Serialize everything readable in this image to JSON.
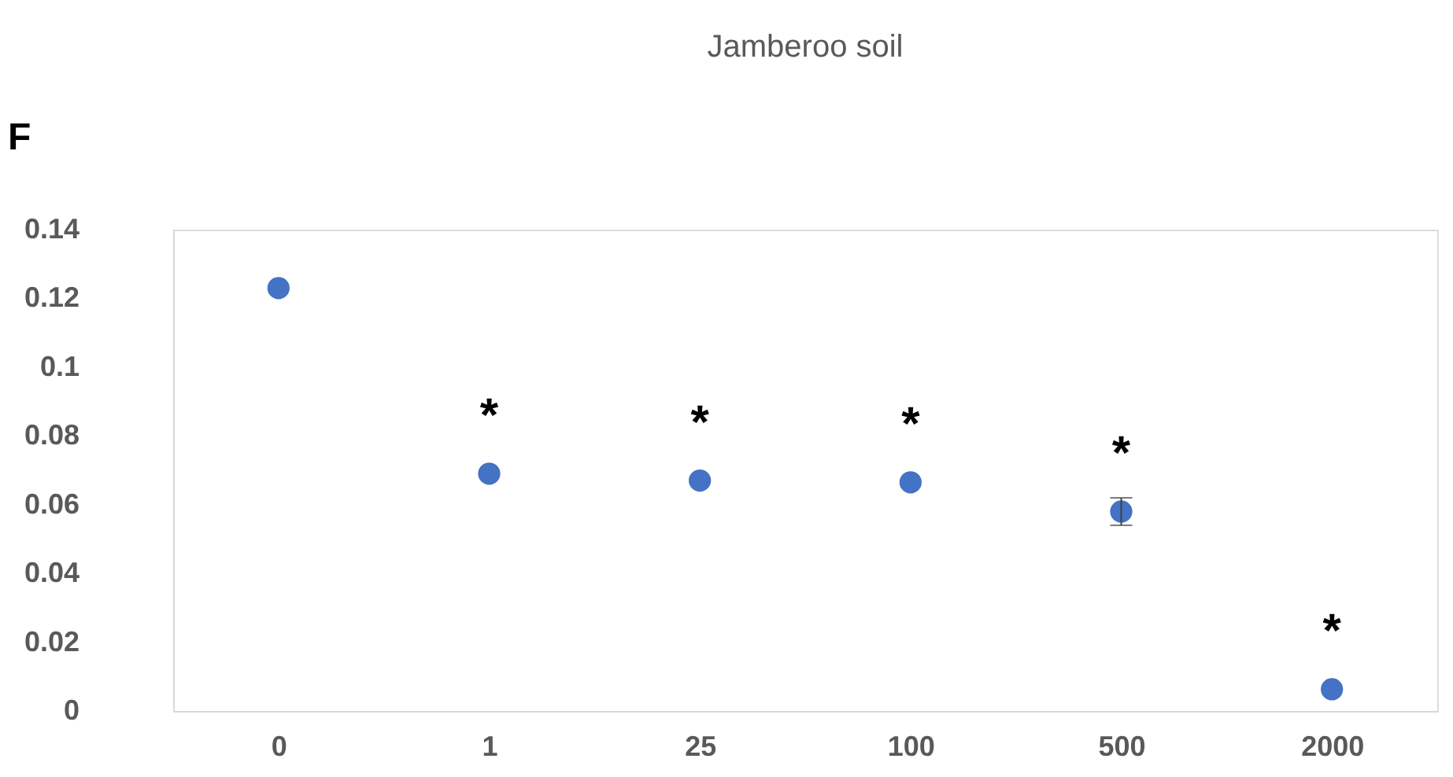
{
  "chart_data": {
    "type": "scatter",
    "title": "Jamberoo soil",
    "categories": [
      "0",
      "1",
      "25",
      "100",
      "500",
      "2000"
    ],
    "values": [
      0.123,
      0.069,
      0.067,
      0.0665,
      0.058,
      0.0063
    ],
    "errors": [
      null,
      null,
      null,
      null,
      0.004,
      null
    ],
    "color": "#4472c4",
    "marker": "circle",
    "ylim": [
      0,
      0.14
    ],
    "yticks": [
      0,
      0.02,
      0.04,
      0.06,
      0.08,
      0.1,
      0.12,
      0.14
    ],
    "grid": false,
    "annotations": [
      "F",
      {
        "text": "*",
        "x": "1",
        "y": 0.069
      },
      {
        "text": "*",
        "x": "25",
        "y": 0.067
      },
      {
        "text": "*",
        "x": "100",
        "y": 0.0665
      },
      {
        "text": "*",
        "x": "500",
        "y": 0.058
      },
      {
        "text": "*",
        "x": "2000",
        "y": 0.0063
      }
    ]
  }
}
